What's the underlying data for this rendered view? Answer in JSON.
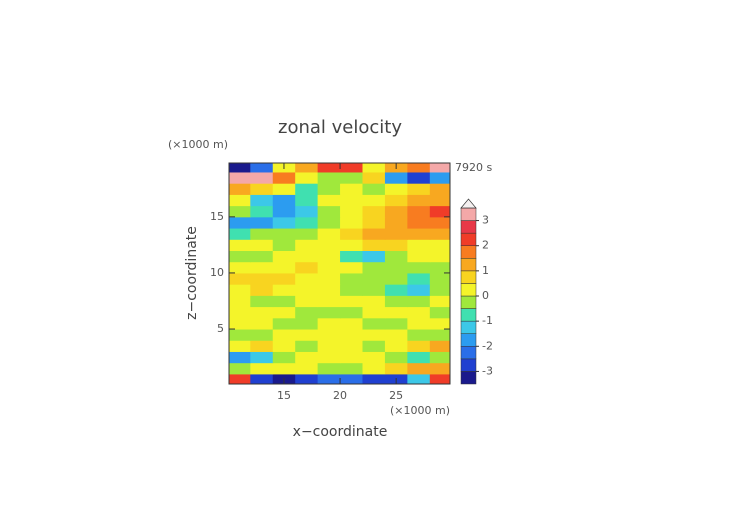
{
  "chart_data": {
    "type": "contour",
    "title": "zonal velocity",
    "time_label": "7920 s",
    "xlabel": "x−coordinate",
    "ylabel": "z−coordinate",
    "xunit": "(×1000 m)",
    "yunit": "(×1000 m)",
    "xlim": [
      10.1,
      29.8
    ],
    "ylim": [
      0.1,
      19.8
    ],
    "xticks": [
      15,
      20,
      25
    ],
    "yticks": [
      5,
      10,
      15
    ],
    "x": [
      11,
      13,
      15,
      17,
      19,
      21,
      23,
      25,
      27,
      29
    ],
    "z": [
      0.5,
      1.5,
      2.5,
      3.5,
      4.5,
      5.5,
      6.5,
      7.5,
      8.5,
      9.5,
      10.5,
      11.5,
      12.5,
      13.5,
      14.5,
      15.5,
      16.5,
      17.5,
      18.5,
      19.5
    ],
    "values": [
      [
        2.2,
        -2.8,
        -3.2,
        -2.8,
        -2.5,
        -2.5,
        -2.8,
        -3.0,
        -1.5,
        2.2
      ],
      [
        -0.3,
        0.3,
        0.2,
        0.3,
        -0.3,
        -0.3,
        0.3,
        0.8,
        1.2,
        1.0
      ],
      [
        -1.8,
        -1.2,
        -0.2,
        0.3,
        0.3,
        0.3,
        0.3,
        -0.2,
        -0.8,
        -0.3
      ],
      [
        0.3,
        0.8,
        0.3,
        -0.2,
        0.3,
        0.3,
        -0.2,
        0.3,
        0.8,
        1.2
      ],
      [
        -0.3,
        -0.2,
        0.2,
        0.3,
        0.3,
        0.3,
        0.2,
        0.3,
        -0.3,
        -0.4
      ],
      [
        0.3,
        0.3,
        -0.2,
        -0.3,
        0.3,
        0.3,
        -0.2,
        -0.2,
        0.3,
        0.3
      ],
      [
        0.3,
        0.2,
        0.3,
        -0.2,
        -0.3,
        -0.3,
        0.2,
        0.3,
        0.3,
        -0.2
      ],
      [
        0.3,
        -0.2,
        -0.3,
        0.3,
        0.3,
        0.3,
        0.3,
        -0.3,
        -0.2,
        0.3
      ],
      [
        0.3,
        0.7,
        0.3,
        0.3,
        0.2,
        -0.2,
        -0.3,
        -0.6,
        -1.1,
        -0.3
      ],
      [
        0.8,
        0.9,
        0.7,
        0.3,
        0.3,
        -0.2,
        -0.3,
        -0.3,
        -0.6,
        -0.3
      ],
      [
        0.3,
        0.3,
        0.2,
        0.7,
        0.3,
        0.3,
        -0.2,
        -0.3,
        -0.2,
        -0.3
      ],
      [
        -0.3,
        -0.2,
        0.3,
        0.3,
        0.2,
        -0.7,
        -1.2,
        -0.3,
        0.3,
        0.3
      ],
      [
        0.3,
        0.3,
        -0.2,
        0.3,
        0.3,
        0.3,
        0.7,
        0.8,
        0.3,
        0.3
      ],
      [
        -0.8,
        -0.3,
        -0.3,
        -0.2,
        0.2,
        0.7,
        1.0,
        1.2,
        1.3,
        1.2
      ],
      [
        -1.6,
        -1.8,
        -1.5,
        -0.8,
        -0.2,
        0.3,
        0.8,
        1.2,
        1.6,
        1.8
      ],
      [
        -0.3,
        -0.8,
        -1.8,
        -1.3,
        -0.3,
        0.3,
        0.8,
        1.3,
        1.8,
        2.3
      ],
      [
        0.3,
        -1.2,
        -1.6,
        -1.0,
        0.2,
        0.3,
        0.3,
        0.8,
        1.3,
        1.2
      ],
      [
        1.3,
        0.8,
        0.3,
        -0.8,
        -0.3,
        0.3,
        -0.3,
        0.3,
        0.8,
        1.3
      ],
      [
        3.2,
        3.2,
        1.8,
        0.3,
        -0.3,
        -0.3,
        0.8,
        -1.8,
        -2.8,
        -2.0
      ],
      [
        -3.2,
        -2.3,
        0.3,
        1.2,
        2.2,
        2.2,
        0.3,
        1.2,
        1.8,
        3.2
      ]
    ],
    "levels": [
      -3.5,
      -3,
      -2.5,
      -2,
      -1.5,
      -1,
      -0.5,
      0,
      0.5,
      1,
      1.5,
      2,
      2.5,
      3,
      3.5
    ],
    "colors": [
      "#1a1a8c",
      "#2040d0",
      "#2a6ee8",
      "#2c9cf0",
      "#3cc8e8",
      "#40e0b0",
      "#a0e83c",
      "#f4f42a",
      "#f8d420",
      "#f8a820",
      "#f87c20",
      "#f03c28",
      "#e83848",
      "#f4a8a8",
      "#f4f0f0"
    ],
    "colorbar_ticks": [
      -3,
      -2,
      -1,
      0,
      1,
      2,
      3
    ]
  }
}
